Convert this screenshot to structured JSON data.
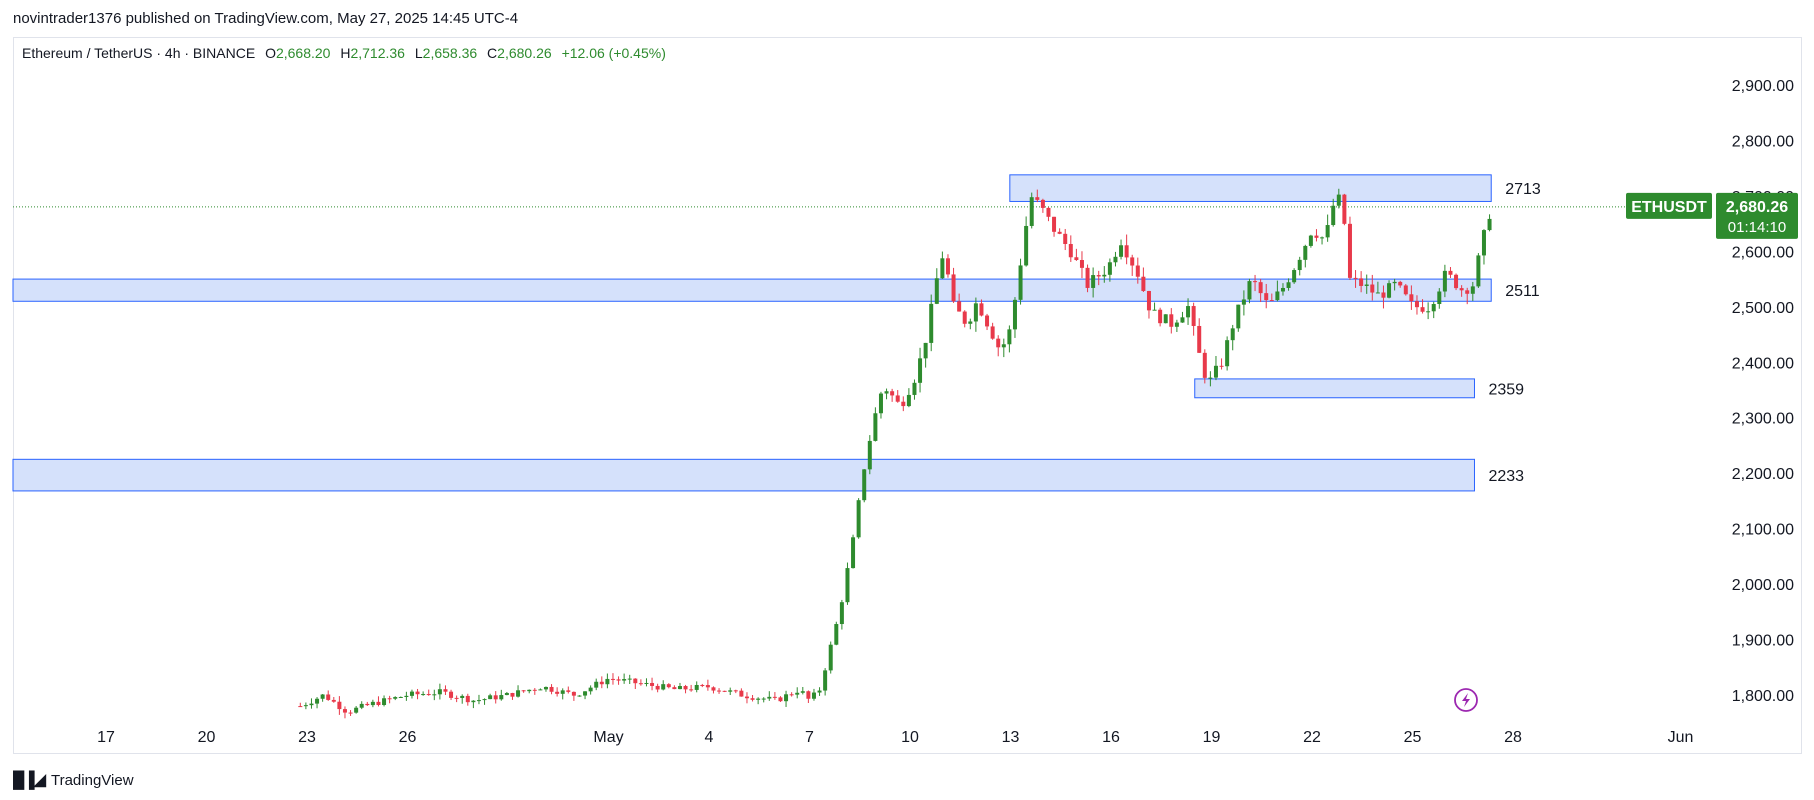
{
  "header": {
    "published": "novintrader1376 published on TradingView.com, May 27, 2025 14:45 UTC-4"
  },
  "legend": {
    "symbol": "Ethereum / TetherUS · 4h · BINANCE",
    "open_label": "O",
    "open": "2,668.20",
    "high_label": "H",
    "high": "2,712.36",
    "low_label": "L",
    "low": "2,658.36",
    "close_label": "C",
    "close": "2,680.26",
    "change": "+12.06 (+0.45%)"
  },
  "price_tag": {
    "symbol": "ETHUSDT",
    "price": "2,680.26",
    "countdown": "01:14:10"
  },
  "footer": {
    "brand": "TradingView"
  },
  "colors": {
    "up": "#2e8b2e",
    "down": "#e8394a",
    "zone_fill": "#d5e1fb",
    "zone_stroke": "#2962ff",
    "tag_bg": "#2e8b2e"
  },
  "chart_data": {
    "type": "candlestick",
    "y_ticks": [
      "2,900.00",
      "2,800.00",
      "2,700.00",
      "2,600.00",
      "2,500.00",
      "2,400.00",
      "2,300.00",
      "2,200.00",
      "2,100.00",
      "2,000.00",
      "1,900.00",
      "1,800.00"
    ],
    "y_tick_values": [
      2900,
      2800,
      2700,
      2600,
      2500,
      2400,
      2300,
      2200,
      2100,
      2000,
      1900,
      1800
    ],
    "ylim": [
      1760,
      2970
    ],
    "x_ticks": [
      "17",
      "20",
      "23",
      "26",
      "May",
      "4",
      "7",
      "10",
      "13",
      "16",
      "19",
      "22",
      "25",
      "28",
      "Jun"
    ],
    "x_tick_days": [
      -14,
      -11,
      -8,
      -5,
      1,
      4,
      7,
      10,
      13,
      16,
      19,
      22,
      25,
      28,
      33
    ],
    "xlim_days": [
      -20,
      40
    ],
    "current_price": 2680.26,
    "zones": [
      {
        "label": "2713",
        "low": 2690,
        "high": 2738,
        "from_day": 12.98,
        "to_day": 27.35
      },
      {
        "label": "2511",
        "low": 2510,
        "high": 2550,
        "from_day": -20,
        "to_day": 27.35
      },
      {
        "label": "2359",
        "low": 2336,
        "high": 2370,
        "from_day": 18.5,
        "to_day": 26.85
      },
      {
        "label": "2233",
        "low": 2168,
        "high": 2225,
        "from_day": -20,
        "to_day": 26.85
      }
    ],
    "price_path": [
      [
        -8.2,
        1780
      ],
      [
        -7.5,
        1800
      ],
      [
        -6.8,
        1770
      ],
      [
        -6.0,
        1785
      ],
      [
        -5.0,
        1800
      ],
      [
        -4.0,
        1805
      ],
      [
        -3.0,
        1790
      ],
      [
        -2.0,
        1800
      ],
      [
        -1.0,
        1815
      ],
      [
        0.0,
        1800
      ],
      [
        1.0,
        1830
      ],
      [
        2.0,
        1820
      ],
      [
        3.0,
        1810
      ],
      [
        4.0,
        1815
      ],
      [
        5.0,
        1800
      ],
      [
        6.0,
        1790
      ],
      [
        6.7,
        1810
      ],
      [
        7.0,
        1790
      ],
      [
        7.3,
        1810
      ],
      [
        7.6,
        1880
      ],
      [
        7.9,
        1950
      ],
      [
        8.3,
        2080
      ],
      [
        8.6,
        2200
      ],
      [
        8.9,
        2290
      ],
      [
        9.2,
        2360
      ],
      [
        9.7,
        2320
      ],
      [
        10.2,
        2380
      ],
      [
        10.5,
        2450
      ],
      [
        10.8,
        2550
      ],
      [
        11.0,
        2600
      ],
      [
        11.3,
        2500
      ],
      [
        11.7,
        2470
      ],
      [
        12.0,
        2510
      ],
      [
        12.4,
        2460
      ],
      [
        12.7,
        2420
      ],
      [
        13.0,
        2460
      ],
      [
        13.3,
        2580
      ],
      [
        13.6,
        2700
      ],
      [
        13.9,
        2680
      ],
      [
        14.3,
        2640
      ],
      [
        14.8,
        2600
      ],
      [
        15.3,
        2540
      ],
      [
        15.9,
        2570
      ],
      [
        16.3,
        2620
      ],
      [
        16.8,
        2560
      ],
      [
        17.2,
        2490
      ],
      [
        17.8,
        2470
      ],
      [
        18.3,
        2500
      ],
      [
        18.6,
        2420
      ],
      [
        18.9,
        2360
      ],
      [
        19.3,
        2400
      ],
      [
        19.7,
        2480
      ],
      [
        20.2,
        2550
      ],
      [
        20.7,
        2500
      ],
      [
        21.2,
        2540
      ],
      [
        21.7,
        2600
      ],
      [
        22.0,
        2640
      ],
      [
        22.4,
        2620
      ],
      [
        22.6,
        2680
      ],
      [
        22.9,
        2700
      ],
      [
        23.1,
        2550
      ],
      [
        23.5,
        2540
      ],
      [
        24.0,
        2520
      ],
      [
        24.5,
        2540
      ],
      [
        25.0,
        2500
      ],
      [
        25.5,
        2500
      ],
      [
        26.0,
        2560
      ],
      [
        26.5,
        2530
      ],
      [
        26.8,
        2540
      ],
      [
        27.1,
        2620
      ],
      [
        27.35,
        2680
      ]
    ]
  }
}
